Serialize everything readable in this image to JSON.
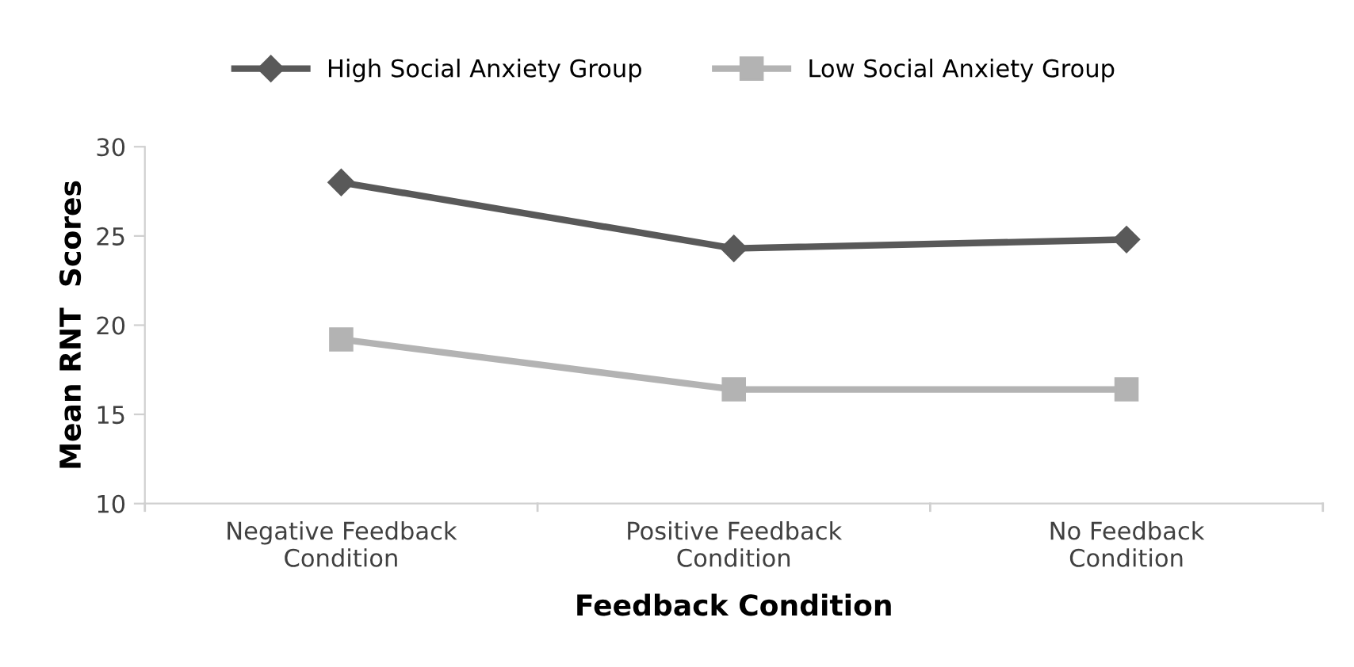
{
  "chart_data": {
    "type": "line",
    "xlabel": "Feedback Condition",
    "ylabel": "Mean RNT  Scores",
    "categories": [
      "Negative Feedback\nCondition",
      "Positive Feedback\nCondition",
      "No Feedback\nCondition"
    ],
    "series": [
      {
        "name": "High Social Anxiety Group",
        "color": "#595959",
        "marker": "diamond",
        "values": [
          28.0,
          24.3,
          24.8
        ]
      },
      {
        "name": "Low Social Anxiety Group",
        "color": "#b3b3b3",
        "marker": "square",
        "values": [
          19.2,
          16.4,
          16.4
        ]
      }
    ],
    "ylim": [
      10,
      30
    ],
    "yticks": [
      10,
      15,
      20,
      25,
      30
    ],
    "grid": false,
    "legend": "top",
    "line_style": "solid"
  }
}
